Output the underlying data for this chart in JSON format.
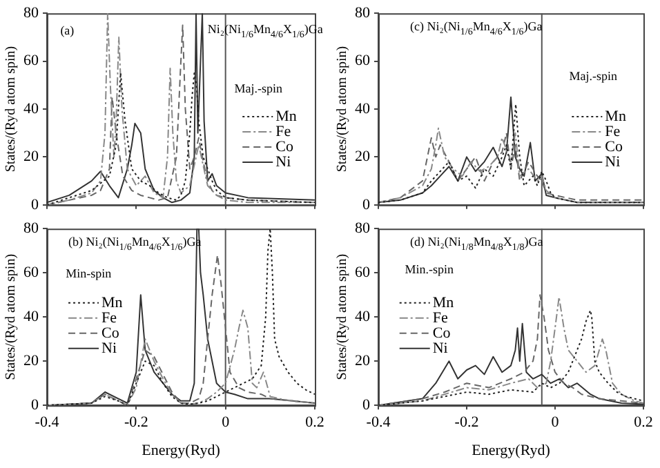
{
  "chart_data": [
    {
      "type": "line",
      "title": "(a)",
      "subtitle": "Ni₂(Ni$_{1/6}$Mn$_{4/6}$X$_{1/6}$)Ga",
      "annotations": [
        "Maj.-spin"
      ],
      "ylabel": "States/(Ryd atom spin)",
      "xlim": [
        -0.4,
        0.2
      ],
      "xticks": [
        -0.4,
        -0.2,
        0,
        0.2
      ],
      "ylim": [
        0,
        80
      ],
      "yticks": [
        0,
        20,
        40,
        60,
        80
      ],
      "tick_labels": "y",
      "legend": "right",
      "ref_lines": [
        {
          "axis": "x",
          "value": 0,
          "color": "#555555"
        }
      ],
      "series": [
        {
          "name": "Mn",
          "color": "#222222",
          "line_style": "dotted",
          "x": [
            -0.4,
            -0.35,
            -0.3,
            -0.28,
            -0.26,
            -0.245,
            -0.235,
            -0.225,
            -0.21,
            -0.19,
            -0.17,
            -0.15,
            -0.13,
            -0.11,
            -0.1,
            -0.09,
            -0.08,
            -0.075,
            -0.07,
            -0.065,
            -0.06,
            -0.05,
            -0.04,
            -0.03,
            -0.02,
            0,
            0.05,
            0.2
          ],
          "values": [
            0,
            3,
            6,
            9,
            12,
            25,
            55,
            35,
            15,
            10,
            8,
            5,
            3,
            2,
            4,
            10,
            30,
            45,
            55,
            50,
            35,
            20,
            15,
            10,
            6,
            3,
            2,
            1
          ]
        },
        {
          "name": "Fe",
          "color": "#888888",
          "line_style": "dashdot",
          "x": [
            -0.4,
            -0.35,
            -0.3,
            -0.28,
            -0.27,
            -0.264,
            -0.258,
            -0.25,
            -0.245,
            -0.239,
            -0.232,
            -0.22,
            -0.2,
            -0.18,
            -0.16,
            -0.14,
            -0.13,
            -0.124,
            -0.118,
            -0.11,
            -0.1,
            -0.08,
            -0.06,
            -0.04,
            -0.02,
            0,
            0.05,
            0.2
          ],
          "values": [
            0,
            2,
            5,
            10,
            30,
            80,
            50,
            20,
            35,
            70,
            40,
            15,
            8,
            12,
            5,
            3,
            20,
            57,
            30,
            10,
            5,
            8,
            25,
            8,
            4,
            2,
            1,
            1
          ]
        },
        {
          "name": "Co",
          "color": "#666666",
          "line_style": "dashed",
          "x": [
            -0.4,
            -0.35,
            -0.3,
            -0.28,
            -0.26,
            -0.254,
            -0.245,
            -0.23,
            -0.21,
            -0.19,
            -0.17,
            -0.15,
            -0.13,
            -0.11,
            -0.1,
            -0.096,
            -0.09,
            -0.08,
            -0.07,
            -0.06,
            -0.05,
            -0.04,
            -0.03,
            -0.02,
            0,
            0.05,
            0.2
          ],
          "values": [
            0,
            2,
            4,
            6,
            15,
            45,
            30,
            12,
            6,
            4,
            3,
            2,
            3,
            20,
            60,
            75,
            40,
            15,
            20,
            28,
            18,
            10,
            6,
            4,
            3,
            2,
            1
          ]
        },
        {
          "name": "Ni",
          "color": "#333333",
          "line_style": "solid",
          "x": [
            -0.4,
            -0.35,
            -0.3,
            -0.28,
            -0.26,
            -0.24,
            -0.22,
            -0.21,
            -0.203,
            -0.19,
            -0.18,
            -0.16,
            -0.14,
            -0.12,
            -0.1,
            -0.08,
            -0.07,
            -0.066,
            -0.062,
            -0.058,
            -0.052,
            -0.048,
            -0.04,
            -0.03,
            -0.02,
            0,
            0.05,
            0.2
          ],
          "values": [
            1,
            4,
            10,
            14,
            8,
            3,
            15,
            25,
            34,
            30,
            15,
            6,
            3,
            1,
            2,
            5,
            20,
            80,
            30,
            50,
            80,
            35,
            10,
            13,
            8,
            5,
            3,
            2
          ]
        }
      ]
    },
    {
      "type": "line",
      "title": "(c) Ni₂(Ni$_{1/6}$Mn$_{4/6}$X$_{1/6}$)Ga",
      "annotations": [
        "Maj.-spin"
      ],
      "ylabel": "States/(Ryd atom spin)",
      "xlim": [
        -0.4,
        0.2
      ],
      "xticks": [
        -0.4,
        -0.2,
        0,
        0.2
      ],
      "ylim": [
        0,
        80
      ],
      "yticks": [
        0,
        20,
        40,
        60,
        80
      ],
      "tick_labels": "y",
      "legend": "right",
      "ref_lines": [
        {
          "axis": "x",
          "value": -0.03,
          "color": "#555555"
        }
      ],
      "series": [
        {
          "name": "Mn",
          "color": "#222222",
          "line_style": "dotted",
          "x": [
            -0.4,
            -0.35,
            -0.3,
            -0.28,
            -0.26,
            -0.24,
            -0.22,
            -0.2,
            -0.18,
            -0.16,
            -0.14,
            -0.12,
            -0.11,
            -0.1,
            -0.089,
            -0.08,
            -0.07,
            -0.06,
            -0.05,
            -0.04,
            -0.03,
            -0.02,
            -0.01,
            0,
            0.05,
            0.2
          ],
          "values": [
            1,
            2,
            5,
            10,
            14,
            18,
            10,
            12,
            7,
            15,
            12,
            20,
            25,
            15,
            42,
            20,
            8,
            10,
            12,
            8,
            14,
            10,
            5,
            3,
            1,
            1
          ]
        },
        {
          "name": "Fe",
          "color": "#888888",
          "line_style": "dashdot",
          "x": [
            -0.4,
            -0.35,
            -0.3,
            -0.28,
            -0.27,
            -0.264,
            -0.25,
            -0.23,
            -0.21,
            -0.19,
            -0.17,
            -0.15,
            -0.13,
            -0.12,
            -0.1,
            -0.09,
            -0.08,
            -0.06,
            -0.04,
            -0.03,
            -0.02,
            0,
            0.05,
            0.2
          ],
          "values": [
            1,
            3,
            8,
            15,
            25,
            32,
            20,
            15,
            12,
            18,
            14,
            16,
            20,
            28,
            18,
            30,
            12,
            15,
            10,
            12,
            6,
            3,
            1,
            1
          ]
        },
        {
          "name": "Co",
          "color": "#666666",
          "line_style": "dashed",
          "x": [
            -0.4,
            -0.35,
            -0.3,
            -0.28,
            -0.27,
            -0.26,
            -0.24,
            -0.22,
            -0.2,
            -0.18,
            -0.16,
            -0.14,
            -0.12,
            -0.11,
            -0.1,
            -0.09,
            -0.08,
            -0.06,
            -0.04,
            -0.03,
            -0.02,
            0,
            0.05,
            0.2
          ],
          "values": [
            1,
            3,
            10,
            28,
            20,
            25,
            18,
            10,
            15,
            20,
            10,
            18,
            22,
            30,
            15,
            25,
            10,
            18,
            12,
            10,
            5,
            4,
            2,
            2
          ]
        },
        {
          "name": "Ni",
          "color": "#333333",
          "line_style": "solid",
          "x": [
            -0.4,
            -0.35,
            -0.3,
            -0.28,
            -0.26,
            -0.24,
            -0.22,
            -0.2,
            -0.18,
            -0.16,
            -0.14,
            -0.12,
            -0.11,
            -0.1,
            -0.09,
            -0.08,
            -0.07,
            -0.056,
            -0.045,
            -0.03,
            -0.02,
            0,
            0.05,
            0.2
          ],
          "values": [
            1,
            2,
            5,
            8,
            12,
            16,
            10,
            20,
            14,
            18,
            24,
            16,
            22,
            45,
            20,
            15,
            12,
            26,
            10,
            13,
            4,
            3,
            1,
            1
          ]
        }
      ]
    },
    {
      "type": "line",
      "title": "(b) Ni₂(Ni$_{1/6}$Mn$_{4/6}$X$_{1/6}$)Ga",
      "annotations": [
        "Min-spin"
      ],
      "xlabel": "Energy(Ryd)",
      "ylabel": "States/(Ryd atom spin)",
      "xlim": [
        -0.4,
        0.2
      ],
      "xticks": [
        -0.4,
        -0.2,
        0,
        0.2
      ],
      "ylim": [
        0,
        80
      ],
      "yticks": [
        0,
        20,
        40,
        60,
        80
      ],
      "legend": "left",
      "ref_lines": [
        {
          "axis": "x",
          "value": 0,
          "color": "#555555"
        }
      ],
      "series": [
        {
          "name": "Mn",
          "color": "#222222",
          "line_style": "dotted",
          "x": [
            -0.4,
            -0.3,
            -0.27,
            -0.24,
            -0.22,
            -0.2,
            -0.18,
            -0.16,
            -0.14,
            -0.12,
            -0.1,
            -0.08,
            -0.06,
            -0.04,
            -0.02,
            0,
            0.02,
            0.04,
            0.06,
            0.08,
            0.09,
            0.095,
            0.1,
            0.105,
            0.11,
            0.12,
            0.14,
            0.16,
            0.18,
            0.2
          ],
          "values": [
            0,
            1,
            4,
            2,
            0,
            10,
            20,
            18,
            10,
            4,
            1,
            0.5,
            1,
            2,
            4,
            6,
            8,
            10,
            12,
            18,
            40,
            70,
            80,
            60,
            30,
            22,
            15,
            10,
            7,
            5
          ]
        },
        {
          "name": "Fe",
          "color": "#888888",
          "line_style": "dashdot",
          "x": [
            -0.4,
            -0.3,
            -0.27,
            -0.24,
            -0.22,
            -0.2,
            -0.18,
            -0.16,
            -0.14,
            -0.12,
            -0.1,
            -0.08,
            -0.06,
            -0.04,
            -0.02,
            0,
            0.02,
            0.03,
            0.039,
            0.05,
            0.06,
            0.07,
            0.085,
            0.1,
            0.12,
            0.15,
            0.2
          ],
          "values": [
            0,
            1,
            5,
            2,
            0,
            8,
            30,
            20,
            12,
            5,
            1,
            0.5,
            1,
            3,
            6,
            10,
            25,
            35,
            43,
            35,
            10,
            8,
            15,
            4,
            3,
            2,
            1
          ]
        },
        {
          "name": "Co",
          "color": "#666666",
          "line_style": "dashed",
          "x": [
            -0.4,
            -0.3,
            -0.27,
            -0.24,
            -0.22,
            -0.2,
            -0.18,
            -0.16,
            -0.14,
            -0.12,
            -0.1,
            -0.08,
            -0.06,
            -0.05,
            -0.04,
            -0.03,
            -0.018,
            -0.01,
            0,
            0.01,
            0.03,
            0.05,
            0.08,
            0.1,
            0.15,
            0.2
          ],
          "values": [
            0,
            1,
            5,
            2,
            0,
            12,
            25,
            22,
            14,
            6,
            1,
            1,
            3,
            10,
            30,
            50,
            68,
            55,
            35,
            15,
            8,
            6,
            5,
            3,
            2,
            1
          ]
        },
        {
          "name": "Ni",
          "color": "#333333",
          "line_style": "solid",
          "x": [
            -0.4,
            -0.3,
            -0.27,
            -0.24,
            -0.22,
            -0.2,
            -0.19,
            -0.18,
            -0.16,
            -0.14,
            -0.12,
            -0.1,
            -0.08,
            -0.07,
            -0.064,
            -0.06,
            -0.056,
            -0.05,
            -0.04,
            -0.03,
            -0.02,
            0,
            0.02,
            0.05,
            0.1,
            0.15,
            0.2
          ],
          "values": [
            0,
            1,
            6,
            3,
            1,
            15,
            50,
            25,
            15,
            10,
            5,
            2,
            2,
            10,
            80,
            80,
            60,
            50,
            30,
            20,
            10,
            6,
            5,
            3,
            3,
            2,
            1
          ]
        }
      ]
    },
    {
      "type": "line",
      "title": "(d) Ni₂(Ni$_{1/8}$Mn$_{4/8}$X$_{1/8}$)Ga",
      "annotations": [
        "Min.-spin"
      ],
      "xlabel": "Energy(Ryd)",
      "ylabel": "States/(Ryd atom spin)",
      "xlim": [
        -0.4,
        0.2
      ],
      "xticks": [
        -0.4,
        -0.2,
        0,
        0.2
      ],
      "ylim": [
        0,
        80
      ],
      "yticks": [
        0,
        20,
        40,
        60,
        80
      ],
      "legend": "left",
      "ref_lines": [
        {
          "axis": "x",
          "value": -0.03,
          "color": "#555555"
        }
      ],
      "series": [
        {
          "name": "Mn",
          "color": "#222222",
          "line_style": "dotted",
          "x": [
            -0.4,
            -0.3,
            -0.25,
            -0.2,
            -0.15,
            -0.1,
            -0.05,
            -0.03,
            -0.01,
            0.01,
            0.03,
            0.05,
            0.06,
            0.07,
            0.08,
            0.083,
            0.09,
            0.1,
            0.12,
            0.14,
            0.16,
            0.18,
            0.2
          ],
          "values": [
            0,
            2,
            4,
            6,
            5,
            7,
            6,
            10,
            8,
            10,
            15,
            25,
            30,
            38,
            43,
            40,
            20,
            15,
            10,
            6,
            4,
            3,
            2
          ]
        },
        {
          "name": "Fe",
          "color": "#888888",
          "line_style": "dashdot",
          "x": [
            -0.4,
            -0.3,
            -0.25,
            -0.2,
            -0.15,
            -0.1,
            -0.06,
            -0.04,
            -0.02,
            -0.01,
            0,
            0.009,
            0.02,
            0.03,
            0.05,
            0.07,
            0.09,
            0.1,
            0.107,
            0.115,
            0.13,
            0.15,
            0.18,
            0.2
          ],
          "values": [
            0,
            2,
            5,
            8,
            7,
            10,
            12,
            8,
            10,
            20,
            35,
            49,
            35,
            25,
            20,
            15,
            18,
            25,
            30,
            25,
            10,
            5,
            2,
            1
          ]
        },
        {
          "name": "Co",
          "color": "#666666",
          "line_style": "dashed",
          "x": [
            -0.4,
            -0.3,
            -0.25,
            -0.2,
            -0.15,
            -0.1,
            -0.07,
            -0.05,
            -0.04,
            -0.034,
            -0.025,
            -0.015,
            0,
            0.02,
            0.04,
            0.06,
            0.08,
            0.1,
            0.15,
            0.2
          ],
          "values": [
            0,
            3,
            6,
            10,
            8,
            12,
            15,
            20,
            30,
            50,
            40,
            25,
            15,
            10,
            8,
            5,
            4,
            3,
            2,
            1
          ]
        },
        {
          "name": "Ni",
          "color": "#333333",
          "line_style": "solid",
          "x": [
            -0.4,
            -0.3,
            -0.27,
            -0.24,
            -0.22,
            -0.2,
            -0.18,
            -0.16,
            -0.14,
            -0.12,
            -0.1,
            -0.09,
            -0.085,
            -0.08,
            -0.074,
            -0.065,
            -0.05,
            -0.03,
            -0.01,
            0.01,
            0.03,
            0.05,
            0.08,
            0.1,
            0.15,
            0.2
          ],
          "values": [
            0,
            3,
            10,
            20,
            12,
            16,
            18,
            14,
            22,
            15,
            18,
            25,
            35,
            20,
            37,
            15,
            12,
            14,
            10,
            12,
            8,
            10,
            5,
            3,
            1,
            0.5
          ]
        }
      ]
    }
  ]
}
